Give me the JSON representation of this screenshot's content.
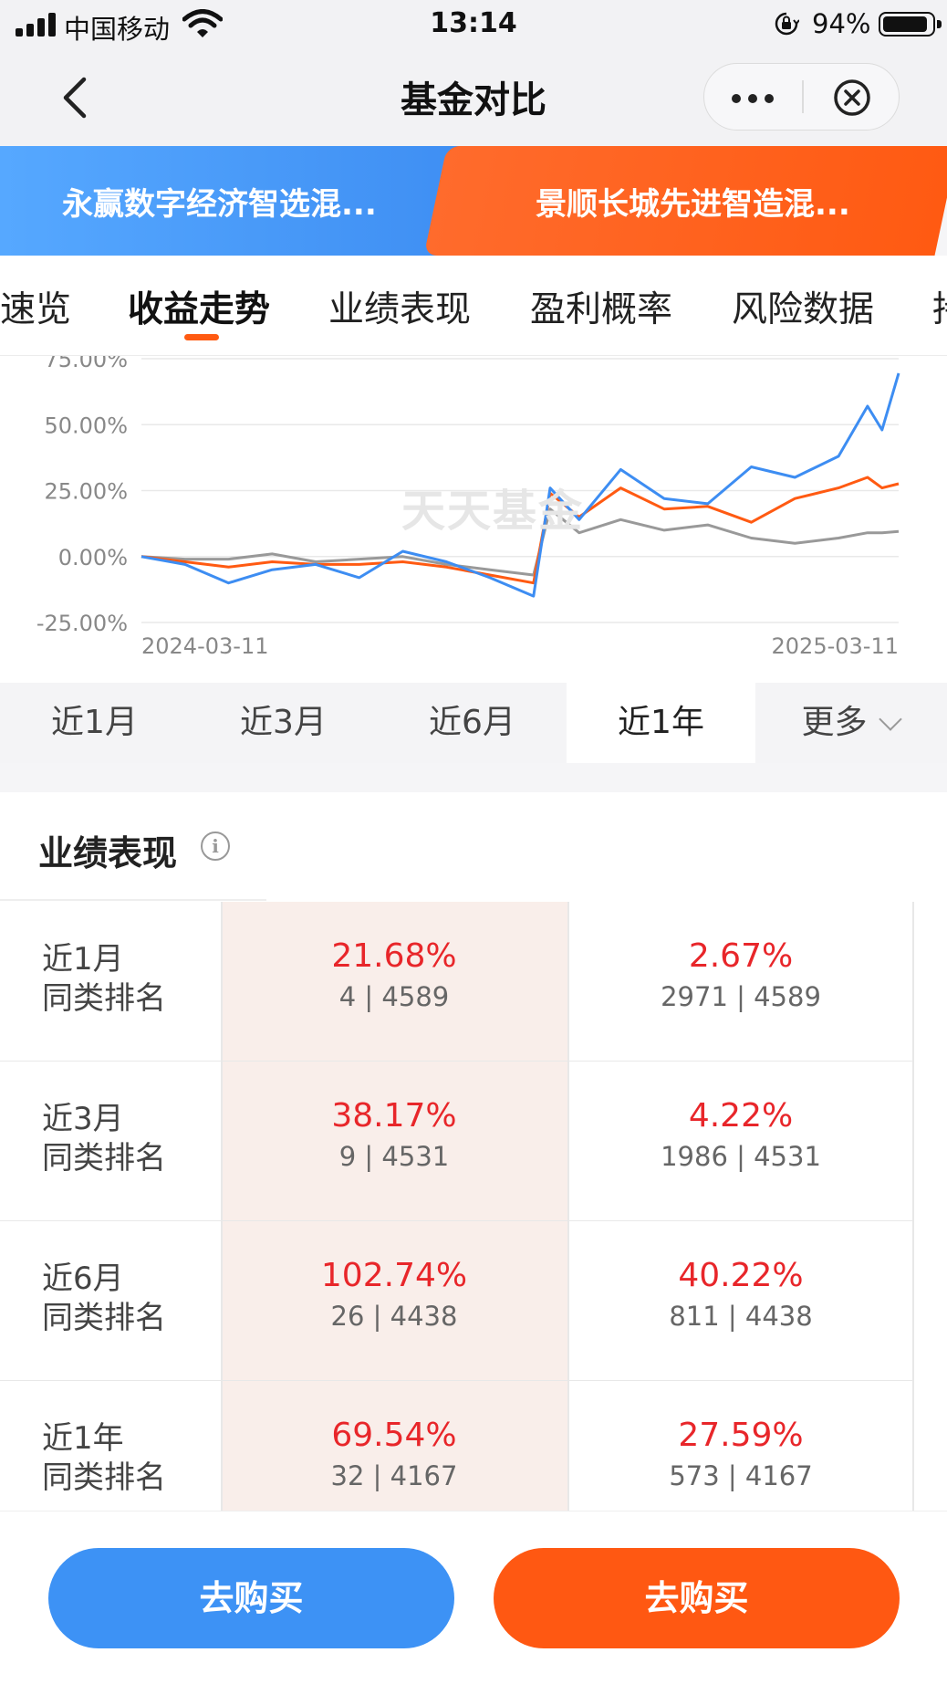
{
  "status_bar": {
    "carrier": "中国移动",
    "time": "13:14",
    "battery_pct": "94%",
    "battery_level": 0.94,
    "icons": [
      "signal-icon",
      "wifi-icon",
      "orientation-lock-icon",
      "battery-icon"
    ]
  },
  "nav": {
    "title": "基金对比",
    "icons": [
      "back-icon",
      "more-icon",
      "close-icon"
    ]
  },
  "funds": {
    "a": {
      "name": "永赢数字经济智选混...",
      "color": "#3d8df2"
    },
    "b": {
      "name": "景顺长城先进智造混...",
      "color": "#ff5a12"
    }
  },
  "tabs": [
    {
      "label": "速览",
      "active": false
    },
    {
      "label": "收益走势",
      "active": true
    },
    {
      "label": "业绩表现",
      "active": false
    },
    {
      "label": "盈利概率",
      "active": false
    },
    {
      "label": "风险数据",
      "active": false
    },
    {
      "label": "持",
      "active": false
    }
  ],
  "chart": {
    "watermark": "天天基金",
    "x_start_label": "2024-03-11",
    "x_end_label": "2025-03-11"
  },
  "chart_data": {
    "type": "line",
    "title": "",
    "xlabel": "",
    "ylabel": "",
    "x_range": [
      "2024-03-11",
      "2025-03-11"
    ],
    "ylim": [
      -25,
      75
    ],
    "y_ticks": [
      "75.00%",
      "50.00%",
      "25.00%",
      "0.00%",
      "-25.00%"
    ],
    "grid": true,
    "legend": "none",
    "x": [
      "2024-03-11",
      "2024-04-01",
      "2024-04-22",
      "2024-05-13",
      "2024-06-03",
      "2024-06-24",
      "2024-07-15",
      "2024-08-05",
      "2024-08-26",
      "2024-09-16",
      "2024-09-24",
      "2024-10-08",
      "2024-10-28",
      "2024-11-18",
      "2024-12-09",
      "2024-12-30",
      "2025-01-20",
      "2025-02-10",
      "2025-02-24",
      "2025-03-03",
      "2025-03-11"
    ],
    "series": [
      {
        "color": "#3d8df2",
        "values": [
          0,
          -3,
          -10,
          -5,
          -3,
          -8,
          2,
          -2,
          -8,
          -15,
          26,
          14,
          33,
          22,
          20,
          34,
          30,
          38,
          57,
          48,
          69.5
        ]
      },
      {
        "color": "#ff5a12",
        "values": [
          0,
          -2,
          -4,
          -2,
          -3,
          -3,
          -2,
          -4,
          -7,
          -10,
          24,
          15,
          26,
          18,
          19,
          13,
          22,
          26,
          30,
          26,
          27.6
        ]
      },
      {
        "color": "#999999",
        "values": [
          0,
          -1,
          -1,
          1,
          -2,
          -1,
          0,
          -3,
          -5,
          -7,
          18,
          9,
          14,
          10,
          12,
          7,
          5,
          7,
          9,
          9,
          9.5
        ]
      }
    ]
  },
  "periods": [
    {
      "label": "近1月",
      "active": false
    },
    {
      "label": "近3月",
      "active": false
    },
    {
      "label": "近6月",
      "active": false
    },
    {
      "label": "近1年",
      "active": true
    },
    {
      "label": "更多",
      "active": false
    }
  ],
  "performance": {
    "title": "业绩表现",
    "rank_label": "同类排名",
    "rows": [
      {
        "period": "近1月",
        "a_pct": "21.68%",
        "a_rank": "4 | 4589",
        "b_pct": "2.67%",
        "b_rank": "2971 | 4589"
      },
      {
        "period": "近3月",
        "a_pct": "38.17%",
        "a_rank": "9 | 4531",
        "b_pct": "4.22%",
        "b_rank": "1986 | 4531"
      },
      {
        "period": "近6月",
        "a_pct": "102.74%",
        "a_rank": "26 | 4438",
        "b_pct": "40.22%",
        "b_rank": "811 | 4438"
      },
      {
        "period": "近1年",
        "a_pct": "69.54%",
        "a_rank": "32 | 4167",
        "b_pct": "27.59%",
        "b_rank": "573 | 4167"
      }
    ]
  },
  "buttons": {
    "buy_a": "去购买",
    "buy_b": "去购买"
  }
}
